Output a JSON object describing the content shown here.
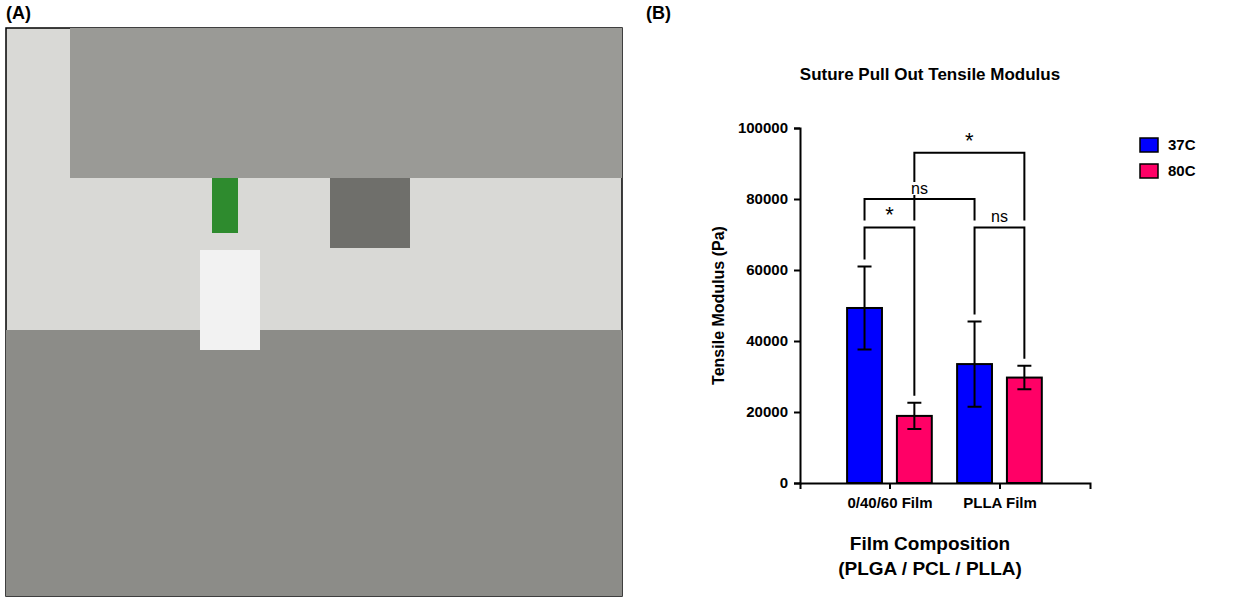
{
  "panel_labels": [
    "(A)",
    "(B)"
  ],
  "chart_data": {
    "type": "bar",
    "title": "Suture Pull Out Tensile Modulus",
    "y_label": "Tensile Modulus (Pa)",
    "x_label": [
      "Film Composition",
      "(PLGA / PCL / PLLA)"
    ],
    "categories": [
      "0/40/60 Film",
      "PLLA Film"
    ],
    "series": [
      {
        "name": "37C",
        "color": "#0000ff",
        "values": [
          49300,
          33500
        ],
        "errors": [
          11700,
          12000
        ]
      },
      {
        "name": "80C",
        "color": "#ff0066",
        "values": [
          18900,
          29700
        ],
        "errors": [
          3700,
          3300
        ]
      }
    ],
    "ylim": [
      0,
      100000
    ],
    "yticks": [
      0,
      20000,
      40000,
      60000,
      80000,
      100000
    ],
    "legend": "top-right",
    "annotations": [
      {
        "label": "*",
        "from": [
          0,
          0
        ],
        "to": [
          0,
          1
        ],
        "y": 72000
      },
      {
        "label": "ns",
        "from": [
          0,
          0
        ],
        "to": [
          1,
          0
        ],
        "y": 80000
      },
      {
        "label": "ns",
        "from": [
          1,
          0
        ],
        "to": [
          1,
          1
        ],
        "y": 72000
      },
      {
        "label": "*",
        "from": [
          0,
          1
        ],
        "to": [
          1,
          1
        ],
        "y": 93000
      }
    ]
  }
}
